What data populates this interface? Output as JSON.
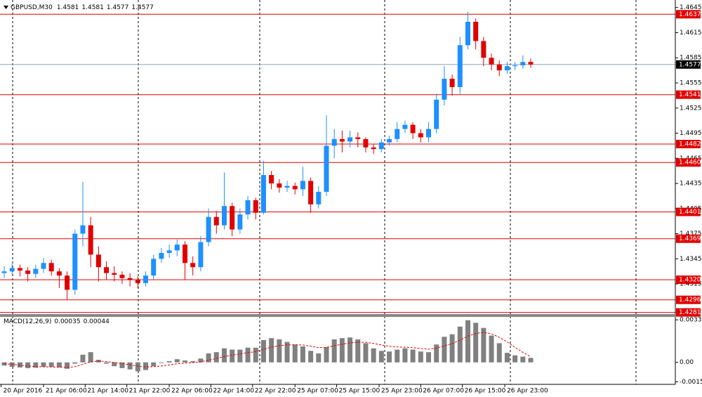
{
  "chart_data": [
    {
      "type": "candlestick",
      "symbol": "GBPUSD,M30",
      "ohlc": [
        1.4581,
        1.4581,
        1.4577,
        1.4577
      ],
      "up_color": "#1e90ff",
      "down_color": "#e00000",
      "xlim": [
        -0.54,
        85.4
      ],
      "ylim": [
        1.4279,
        1.4654
      ],
      "yticks": [
        1.4645,
        1.4615,
        1.4585,
        1.4555,
        1.4525,
        1.4495,
        1.4465,
        1.4435,
        1.4405,
        1.4375,
        1.4345,
        1.4315
      ],
      "levels": [
        1.4637,
        1.4541,
        1.4482,
        {
          "value": 1.446,
          "label": "1.4460"
        },
        1.4401,
        1.4369,
        {
          "value": 1.432,
          "label": "1.4320"
        },
        1.4296,
        1.4281
      ],
      "level_color": "#e00000",
      "current_price": 1.4577,
      "open": [
        1.4328,
        1.433,
        1.4334,
        1.4331,
        1.4327,
        1.4333,
        1.434,
        1.433,
        1.4325,
        1.4308,
        1.4375,
        1.4385,
        1.435,
        1.4335,
        1.4328,
        1.4326,
        1.4322,
        1.432,
        1.4316,
        1.4325,
        1.4345,
        1.4352,
        1.4355,
        1.4362,
        1.434,
        1.4335,
        1.4365,
        1.4395,
        1.4385,
        1.4408,
        1.438,
        1.4398,
        1.4415,
        1.44,
        1.4445,
        1.4435,
        1.443,
        1.4432,
        1.4428,
        1.4438,
        1.441,
        1.4425,
        1.448,
        1.4488,
        1.4485,
        1.449,
        1.4488,
        1.4478,
        1.4476,
        1.4484,
        1.4488,
        1.45,
        1.4505,
        1.4495,
        1.449,
        1.45,
        1.4535,
        1.456,
        1.455,
        1.46,
        1.4628,
        1.4605,
        1.4585,
        1.4577,
        1.457,
        1.4575,
        1.4576,
        1.458
      ],
      "high": [
        1.4336,
        1.4339,
        1.4338,
        1.4335,
        1.4338,
        1.4346,
        1.4344,
        1.4334,
        1.433,
        1.438,
        1.4437,
        1.4395,
        1.436,
        1.4342,
        1.4336,
        1.433,
        1.4328,
        1.4324,
        1.433,
        1.435,
        1.4358,
        1.4362,
        1.4368,
        1.4366,
        1.4348,
        1.4372,
        1.4405,
        1.4402,
        1.4448,
        1.4412,
        1.4405,
        1.442,
        1.4418,
        1.4462,
        1.445,
        1.444,
        1.4438,
        1.4436,
        1.4455,
        1.4442,
        1.4432,
        1.4516,
        1.45,
        1.4498,
        1.4498,
        1.4496,
        1.449,
        1.4482,
        1.4488,
        1.4492,
        1.4508,
        1.451,
        1.4508,
        1.45,
        1.4508,
        1.4542,
        1.4575,
        1.4565,
        1.461,
        1.464,
        1.4632,
        1.461,
        1.459,
        1.4582,
        1.458,
        1.458,
        1.4588,
        1.4584
      ],
      "low": [
        1.4322,
        1.4326,
        1.4324,
        1.4318,
        1.4322,
        1.4328,
        1.4325,
        1.431,
        1.4296,
        1.4302,
        1.436,
        1.4335,
        1.4318,
        1.432,
        1.4318,
        1.4315,
        1.4312,
        1.431,
        1.4312,
        1.432,
        1.434,
        1.4346,
        1.4348,
        1.432,
        1.4325,
        1.433,
        1.436,
        1.4375,
        1.438,
        1.4372,
        1.4375,
        1.4392,
        1.4392,
        1.4398,
        1.4428,
        1.4424,
        1.4425,
        1.4422,
        1.442,
        1.44,
        1.4405,
        1.442,
        1.4465,
        1.4472,
        1.4478,
        1.4478,
        1.4472,
        1.447,
        1.4472,
        1.448,
        1.4484,
        1.4495,
        1.4488,
        1.4484,
        1.4484,
        1.4495,
        1.4528,
        1.454,
        1.4542,
        1.4595,
        1.4595,
        1.4575,
        1.457,
        1.4563,
        1.4566,
        1.457,
        1.4572,
        1.4573
      ],
      "close": [
        1.433,
        1.4334,
        1.4331,
        1.4327,
        1.4333,
        1.434,
        1.433,
        1.4325,
        1.4308,
        1.4375,
        1.4385,
        1.435,
        1.4335,
        1.4328,
        1.4326,
        1.4322,
        1.432,
        1.4316,
        1.4325,
        1.4345,
        1.4352,
        1.4355,
        1.4362,
        1.434,
        1.4335,
        1.4365,
        1.4395,
        1.4385,
        1.4408,
        1.438,
        1.4398,
        1.4415,
        1.44,
        1.4445,
        1.4435,
        1.443,
        1.4432,
        1.4428,
        1.4438,
        1.441,
        1.4425,
        1.448,
        1.4488,
        1.4485,
        1.449,
        1.4488,
        1.4478,
        1.4476,
        1.4484,
        1.4488,
        1.45,
        1.4505,
        1.4495,
        1.449,
        1.45,
        1.4535,
        1.456,
        1.455,
        1.46,
        1.4628,
        1.4605,
        1.4585,
        1.4577,
        1.457,
        1.4575,
        1.4576,
        1.458,
        1.4577
      ]
    },
    {
      "type": "macd",
      "name": "MACD(12,26,9)",
      "last_values": [
        0.00035,
        0.00044
      ],
      "bar_color": "#808080",
      "signal_color": "#e00000",
      "xlim": [
        -0.54,
        85.4
      ],
      "ylim": [
        -0.00172,
        0.00356
      ],
      "yticks": [
        0.00333,
        {
          "value": 0,
          "label": "0.00"
        },
        -0.00152
      ],
      "xticks": [
        {
          "value": -0.4,
          "label": "20 Apr 2016"
        },
        {
          "value": 5,
          "label": "21 Apr 06:00"
        },
        {
          "value": 10.3,
          "label": "21 Apr 14:00"
        },
        {
          "value": 15.6,
          "label": "21 Apr 22:00"
        },
        {
          "value": 21,
          "label": "22 Apr 06:00"
        },
        {
          "value": 26.3,
          "label": "22 Apr 14:00"
        },
        {
          "value": 31.6,
          "label": "22 Apr 22:00"
        },
        {
          "value": 37,
          "label": "25 Apr 07:00"
        },
        {
          "value": 42.3,
          "label": "25 Apr 15:00"
        },
        {
          "value": 47.7,
          "label": "25 Apr 23:00"
        },
        {
          "value": 53,
          "label": "26 Apr 07:00"
        },
        {
          "value": 58.3,
          "label": "26 Apr 15:00"
        },
        {
          "value": 63.7,
          "label": "26 Apr 23:00"
        }
      ],
      "values": [
        -0.00025,
        -0.00035,
        -0.0004,
        -0.00045,
        -0.00042,
        -0.00035,
        -0.00035,
        -0.0004,
        -0.0005,
        -0.0001,
        0.0006,
        0.0008,
        0.0002,
        -0.0001,
        -0.0003,
        -0.00045,
        -0.00055,
        -0.0007,
        -0.0006,
        -0.0003,
        -5e-05,
        0.0001,
        0.00025,
        0.00015,
        0.0001,
        0.0003,
        0.0007,
        0.0008,
        0.0011,
        0.001,
        0.001,
        0.00115,
        0.00115,
        0.00175,
        0.0019,
        0.0018,
        0.0016,
        0.0014,
        0.00125,
        0.0009,
        0.0007,
        0.0012,
        0.0018,
        0.0019,
        0.00195,
        0.0018,
        0.0015,
        0.0011,
        0.0009,
        0.00085,
        0.001,
        0.0011,
        0.001,
        0.00085,
        0.0008,
        0.0014,
        0.002,
        0.0022,
        0.0028,
        0.0033,
        0.0031,
        0.0027,
        0.0021,
        0.0015,
        0.00075,
        0.00055,
        0.00045,
        0.00035
      ],
      "signal": [
        -0.0001,
        -0.00015,
        -0.00022,
        -0.00028,
        -0.00033,
        -0.00035,
        -0.00036,
        -0.00037,
        -0.0004,
        -0.00034,
        -0.00015,
        5e-05,
        0.0001,
        6e-05,
        -1e-05,
        -0.0001,
        -0.00019,
        -0.00029,
        -0.00035,
        -0.00034,
        -0.00028,
        -0.0002,
        -0.00011,
        -6e-05,
        -2e-05,
        4e-05,
        0.00017,
        0.0003,
        0.00046,
        0.00057,
        0.00066,
        0.00076,
        0.00084,
        0.00102,
        0.00119,
        0.00131,
        0.00137,
        0.00138,
        0.00136,
        0.00127,
        0.00116,
        0.00117,
        0.0013,
        0.00142,
        0.00153,
        0.00158,
        0.00157,
        0.00148,
        0.00136,
        0.00126,
        0.00121,
        0.00119,
        0.00115,
        0.00109,
        0.00103,
        0.00111,
        0.00129,
        0.00147,
        0.00174,
        0.00205,
        0.00226,
        0.00235,
        0.00224,
        0.00196,
        0.0016,
        0.00118,
        0.00078,
        0.00044
      ]
    }
  ]
}
